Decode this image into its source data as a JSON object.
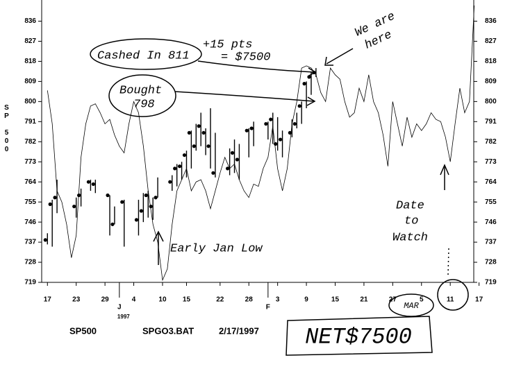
{
  "chart_data": {
    "type": "line",
    "ylabel": "SP 500",
    "xlim": [
      -1.2,
      88.9
    ],
    "ylim": [
      719,
      843
    ],
    "yticks": [
      719,
      728,
      737,
      746,
      755,
      764,
      773,
      782,
      791,
      800,
      809,
      818,
      827,
      836
    ],
    "xticks": [
      {
        "value": 0,
        "label": "17"
      },
      {
        "value": 6,
        "label": "23"
      },
      {
        "value": 12,
        "label": "29"
      },
      {
        "value": 18,
        "label": "4"
      },
      {
        "value": 24,
        "label": "10"
      },
      {
        "value": 29,
        "label": "15"
      },
      {
        "value": 36,
        "label": "22"
      },
      {
        "value": 42,
        "label": "28"
      },
      {
        "value": 48,
        "label": "3"
      },
      {
        "value": 54,
        "label": "9"
      },
      {
        "value": 60,
        "label": "15"
      },
      {
        "value": 66,
        "label": "21"
      },
      {
        "value": 72,
        "label": "27"
      },
      {
        "value": 78,
        "label": "5"
      },
      {
        "value": 84,
        "label": "11"
      },
      {
        "value": 90,
        "label": "17"
      }
    ],
    "month_labels": [
      {
        "x": 15,
        "label": "J",
        "year": "1997"
      },
      {
        "x": 46,
        "label": "F"
      }
    ],
    "line": {
      "color": "#000000",
      "x": [
        0,
        1,
        2,
        3,
        4,
        5,
        6,
        7,
        8,
        9,
        10,
        11,
        12,
        13,
        14,
        15,
        16,
        17,
        18,
        19,
        20,
        21,
        22,
        23,
        24,
        25,
        26,
        27,
        28,
        29,
        30,
        31,
        32,
        33,
        34,
        35,
        36,
        37,
        38,
        39,
        40,
        41,
        42,
        43,
        44,
        45,
        46,
        47,
        48,
        49,
        50,
        51,
        52,
        53,
        54,
        55,
        56,
        57,
        58,
        59,
        60,
        61,
        62,
        63,
        64,
        65,
        66,
        67,
        68,
        69,
        70,
        71,
        72,
        73,
        74,
        75,
        76,
        77,
        78,
        79,
        80,
        81,
        82,
        83,
        84,
        85,
        86,
        87,
        88,
        89
      ],
      "values": [
        805,
        790,
        760,
        755,
        745,
        730,
        740,
        775,
        790,
        798,
        799,
        795,
        790,
        792,
        785,
        780,
        777,
        790,
        800,
        795,
        780,
        760,
        745,
        737,
        720,
        725,
        745,
        760,
        765,
        770,
        760,
        764,
        765,
        760,
        752,
        760,
        768,
        775,
        770,
        772,
        765,
        760,
        757,
        763,
        762,
        770,
        775,
        789,
        770,
        760,
        770,
        790,
        800,
        815,
        816,
        815,
        812,
        804,
        800,
        815,
        812,
        810,
        800,
        793,
        795,
        806,
        800,
        812,
        800,
        795,
        785,
        771,
        800,
        790,
        780,
        793,
        784,
        790,
        787,
        790,
        795,
        792,
        791,
        784,
        773,
        790,
        806,
        795,
        800,
        843
      ]
    },
    "price_bars": {
      "color": "#000000",
      "x": [
        0,
        1,
        2,
        6,
        7,
        9,
        10,
        13,
        14,
        16,
        19,
        20,
        21,
        22,
        23,
        26,
        27,
        28,
        29,
        30,
        31,
        32,
        33,
        34,
        35,
        38,
        39,
        40,
        42,
        43,
        46,
        47,
        48,
        49,
        51,
        52,
        53,
        54,
        55,
        56
      ],
      "high": [
        741,
        756,
        765,
        757,
        761,
        765,
        765,
        758,
        753,
        756,
        756,
        759,
        760,
        757,
        766,
        767,
        772,
        773,
        778,
        787,
        790,
        795,
        788,
        797,
        786,
        779,
        783,
        781,
        788,
        791,
        791,
        795,
        793,
        787,
        792,
        795,
        800,
        809,
        813,
        815
      ],
      "low": [
        736,
        735,
        750,
        748,
        753,
        760,
        759,
        740,
        745,
        735,
        740,
        746,
        748,
        747,
        757,
        760,
        762,
        765,
        766,
        770,
        778,
        780,
        776,
        770,
        766,
        767,
        768,
        765,
        775,
        780,
        783,
        781,
        778,
        775,
        784,
        788,
        790,
        797,
        803,
        811
      ],
      "close": [
        738,
        754,
        757,
        753,
        758,
        764,
        763,
        758,
        745,
        755,
        747,
        751,
        758,
        753,
        757,
        764,
        770,
        771,
        776,
        786,
        780,
        789,
        786,
        780,
        768,
        770,
        777,
        774,
        787,
        788,
        790,
        792,
        781,
        783,
        786,
        790,
        798,
        808,
        811,
        813
      ]
    },
    "footer": [
      "SP500",
      "SPGO3.BAT",
      "2/17/1997"
    ],
    "annotations": {
      "cashed": "Cashed In 811",
      "plus": "+15 pts",
      "equals": "= $7500",
      "bought": "Bought",
      "bought_price": "798",
      "we_are": "We are",
      "here": "here",
      "early_low": "Early Jan Low",
      "date": "Date",
      "to": "to",
      "watch": "Watch",
      "mar": "MAR",
      "net": "NET$7500"
    }
  }
}
